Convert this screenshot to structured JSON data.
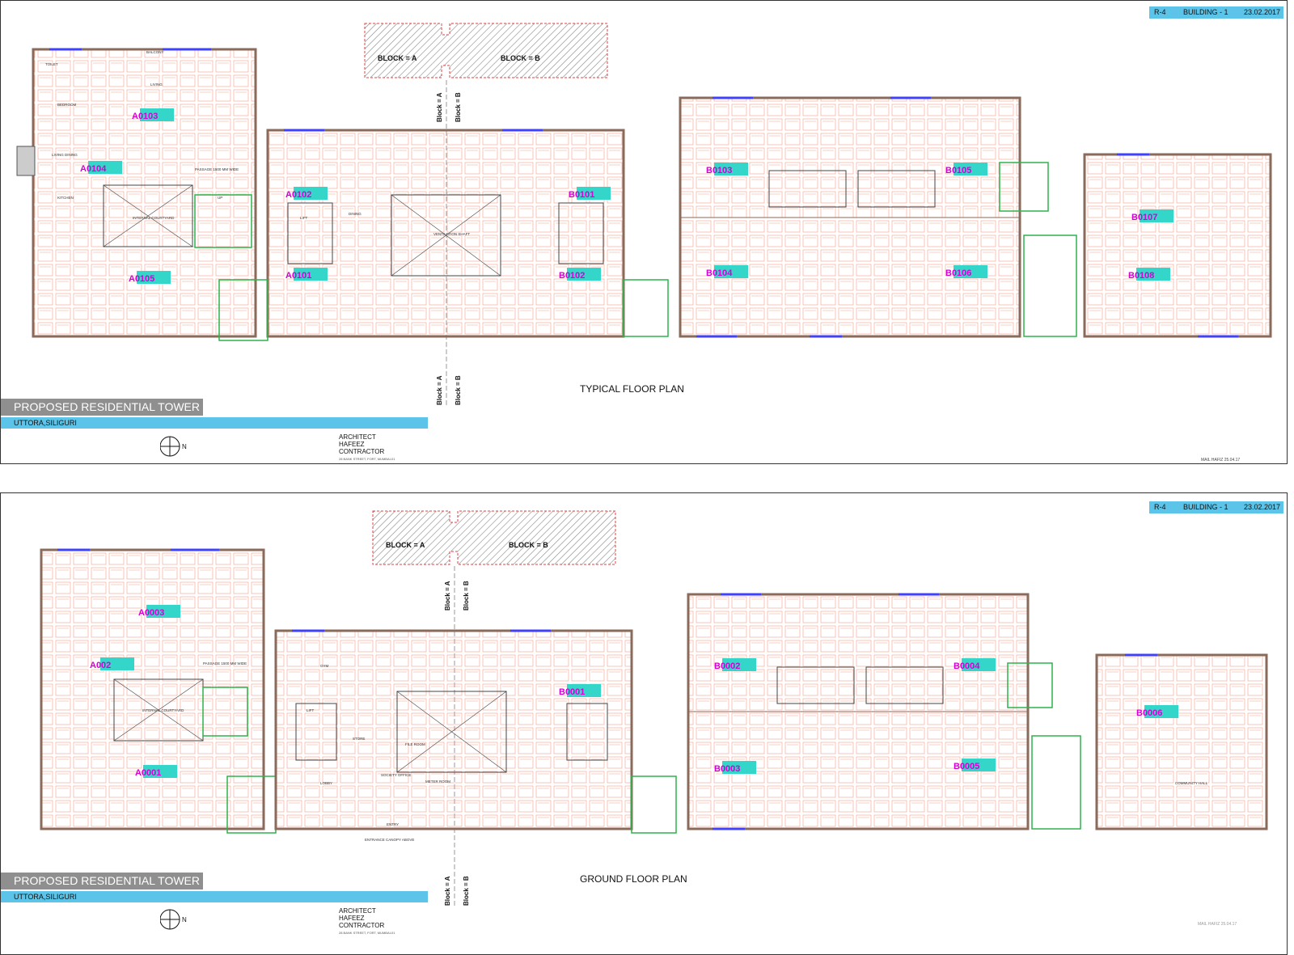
{
  "sheets": [
    {
      "header": {
        "code": "R-4",
        "building": "BUILDING - 1",
        "date": "23.02.2017"
      },
      "key_plan": {
        "block_a": "BLOCK = A",
        "block_b": "BLOCK = B"
      },
      "section_labels": {
        "upper_a": "Block = A",
        "upper_b": "Block = B",
        "lower_a": "Block = A",
        "lower_b": "Block = B"
      },
      "plan_title": "TYPICAL FLOOR PLAN",
      "units": [
        "A0103",
        "A0104",
        "A0102",
        "A0101",
        "A0105",
        "B0101",
        "B0102",
        "B0103",
        "B0104",
        "B0105",
        "B0106",
        "B0107",
        "B0108"
      ],
      "project": "PROPOSED RESIDENTIAL TOWER",
      "location": "UTTORA,SILIGURI",
      "architect": [
        "ARCHITECT",
        "HAFEEZ",
        "CONTRACTOR"
      ],
      "architect_address": "28 BANK STREET, FORT, MUMBAI-01",
      "signature": "MAIL HAFIZ 25.04.17",
      "rooms": [
        "TOILET",
        "BEDROOM",
        "LIVING",
        "KITCHEN",
        "LIVING DINING",
        "BALCONY",
        "DINING",
        "LIFT",
        "PASSAGE 1500 MM WIDE",
        "VENTILATION SHAFT",
        "INTERNAL COURTYARD",
        "UP"
      ]
    },
    {
      "header": {
        "code": "R-4",
        "building": "BUILDING - 1",
        "date": "23.02.2017"
      },
      "key_plan": {
        "block_a": "BLOCK = A",
        "block_b": "BLOCK = B"
      },
      "section_labels": {
        "upper_a": "Block = A",
        "upper_b": "Block = B",
        "lower_a": "Block = A",
        "lower_b": "Block = B"
      },
      "plan_title": "GROUND FLOOR PLAN",
      "units": [
        "A0003",
        "A002",
        "A0001",
        "B0001",
        "B0002",
        "B0003",
        "B0004",
        "B0005",
        "B0006"
      ],
      "project": "PROPOSED RESIDENTIAL TOWER",
      "location": "UTTORA,SILIGURI",
      "architect": [
        "ARCHITECT",
        "HAFEEZ",
        "CONTRACTOR"
      ],
      "architect_address": "28 BANK STREET, FORT, MUMBAI-01",
      "signature": "MAIL HAFIZ 25.04.17",
      "rooms": [
        "GYM",
        "LOBBY",
        "STORE",
        "SOCIETY OFFICE",
        "FILE ROOM",
        "METER ROOM",
        "ENTRANCE CANOPY ABOVE",
        "ENTRY",
        "COMMUNITY HALL",
        "LIFT",
        "PASSAGE 1500 MM WIDE",
        "INTERNAL COURTYARD"
      ]
    }
  ],
  "colors": {
    "accent_blue": "#5bc4e8",
    "title_grey": "#8f8f8f",
    "unit_label": "#d400d4",
    "unit_tag": "#33d6c8",
    "wall": "#8a6a5a",
    "window": "#4040ff",
    "room_line": "#f08a6a",
    "stair": "#2db34a",
    "keyplan_red": "#e04040"
  }
}
